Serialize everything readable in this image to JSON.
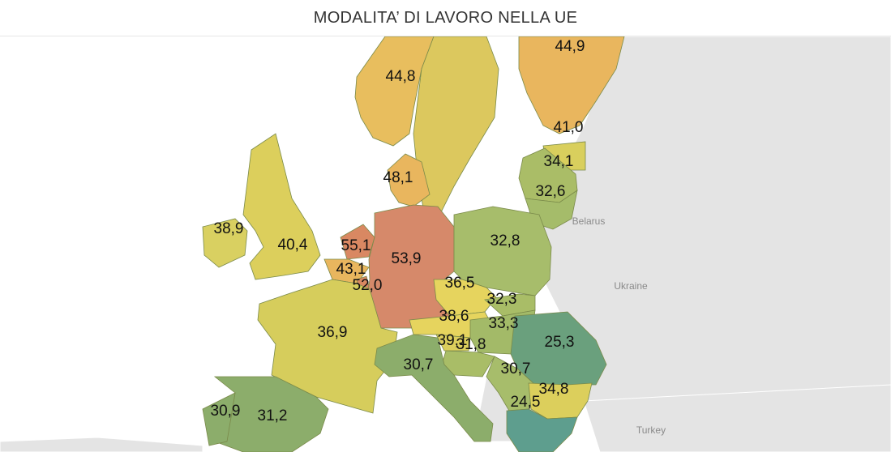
{
  "header": {
    "title": "MODALITA’ DI LAVORO NELLA UE"
  },
  "context_labels": {
    "belarus": "Belarus",
    "ukraine": "Ukraine",
    "turkey": "Turkey"
  },
  "regions": {
    "norway": "44,8",
    "finland": "44,9",
    "estonia": "41,0",
    "latvia": "34,1",
    "lithuania": "32,6",
    "denmark": "48,1",
    "ireland": "38,9",
    "uk": "40,4",
    "netherlands": "55,1",
    "belgium": "43,1",
    "luxembourg": "52,0",
    "germany": "53,9",
    "poland": "32,8",
    "czechia": "36,5",
    "slovakia": "32,3",
    "austria": "38,6",
    "hungary": "33,3",
    "slovenia": "39,1",
    "croatia": "31,8",
    "romania": "25,3",
    "serbia": "30,7",
    "bulgaria": "34,8",
    "greece": "24,5",
    "france": "36,9",
    "italy": "30,7",
    "portugal": "30,9",
    "spain": "31,2"
  },
  "colors": {
    "ocean": "#ffffff",
    "non_eu_land": "#e4e4e4",
    "high": "#d98862",
    "mid_high": "#e9b65e",
    "mid": "#d6cd5c",
    "mid_low": "#a7bd6b",
    "low": "#8cad6b",
    "lowest": "#5e9e8e"
  }
}
